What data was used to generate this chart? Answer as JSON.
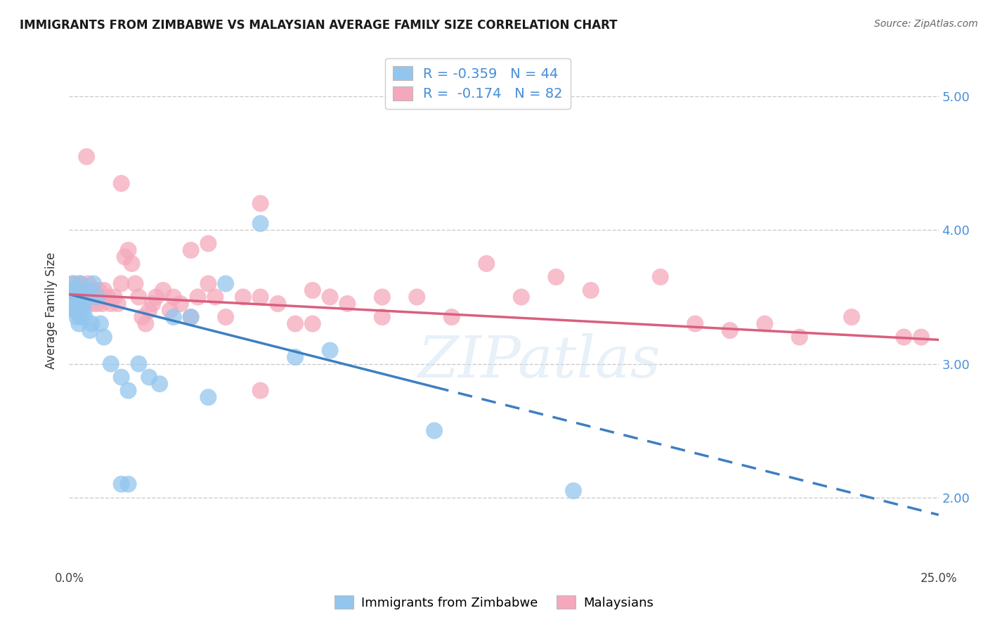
{
  "title": "IMMIGRANTS FROM ZIMBABWE VS MALAYSIAN AVERAGE FAMILY SIZE CORRELATION CHART",
  "source": "Source: ZipAtlas.com",
  "ylabel": "Average Family Size",
  "yticks_right": [
    2.0,
    3.0,
    4.0,
    5.0
  ],
  "xlim": [
    0.0,
    25.0
  ],
  "ylim": [
    1.5,
    5.3
  ],
  "blue_color": "#93C6EE",
  "pink_color": "#F5A8BC",
  "blue_line_color": "#3D7FC1",
  "pink_line_color": "#D95F7F",
  "watermark": "ZIPatlas",
  "blue_R": -0.359,
  "blue_N": 44,
  "pink_R": -0.174,
  "pink_N": 82,
  "blue_trend_x0": 0.0,
  "blue_trend_y0": 3.52,
  "blue_trend_x1": 25.0,
  "blue_trend_y1": 1.87,
  "blue_solid_end": 10.5,
  "pink_trend_x0": 0.0,
  "pink_trend_y0": 3.52,
  "pink_trend_x1": 25.0,
  "pink_trend_y1": 3.18,
  "blue_pts_x": [
    0.05,
    0.08,
    0.1,
    0.12,
    0.13,
    0.15,
    0.17,
    0.18,
    0.2,
    0.22,
    0.25,
    0.28,
    0.3,
    0.32,
    0.35,
    0.38,
    0.4,
    0.42,
    0.45,
    0.5,
    0.55,
    0.6,
    0.65,
    0.7,
    0.8,
    0.9,
    1.0,
    1.2,
    1.5,
    1.7,
    2.0,
    2.3,
    2.6,
    3.0,
    3.5,
    4.0,
    4.5,
    5.5,
    6.5,
    7.5,
    10.5,
    1.5,
    1.7,
    14.5
  ],
  "blue_pts_y": [
    3.55,
    3.5,
    3.6,
    3.45,
    3.4,
    3.55,
    3.5,
    3.45,
    3.4,
    3.35,
    3.45,
    3.3,
    3.5,
    3.6,
    3.35,
    3.5,
    3.4,
    3.45,
    3.35,
    3.5,
    3.55,
    3.25,
    3.3,
    3.6,
    3.5,
    3.3,
    3.2,
    3.0,
    2.9,
    2.8,
    3.0,
    2.9,
    2.85,
    3.35,
    3.35,
    2.75,
    3.6,
    4.05,
    3.05,
    3.1,
    2.5,
    2.1,
    2.1,
    2.05
  ],
  "pink_pts_x": [
    0.05,
    0.08,
    0.1,
    0.13,
    0.15,
    0.18,
    0.2,
    0.22,
    0.25,
    0.28,
    0.3,
    0.32,
    0.35,
    0.38,
    0.4,
    0.42,
    0.45,
    0.5,
    0.55,
    0.6,
    0.65,
    0.7,
    0.75,
    0.8,
    0.85,
    0.9,
    0.95,
    1.0,
    1.1,
    1.2,
    1.3,
    1.4,
    1.5,
    1.6,
    1.7,
    1.8,
    1.9,
    2.0,
    2.1,
    2.2,
    2.3,
    2.4,
    2.5,
    2.7,
    2.9,
    3.0,
    3.2,
    3.5,
    3.7,
    4.0,
    4.2,
    4.5,
    5.0,
    5.5,
    5.5,
    6.0,
    6.5,
    7.0,
    7.5,
    8.0,
    9.0,
    10.0,
    11.0,
    13.0,
    14.0,
    15.0,
    17.0,
    19.0,
    21.0,
    22.5,
    24.0,
    0.5,
    1.5,
    5.5,
    3.5,
    4.0,
    7.0,
    9.0,
    12.0,
    18.0,
    20.0,
    24.5
  ],
  "pink_pts_y": [
    3.5,
    3.55,
    3.45,
    3.6,
    3.5,
    3.55,
    3.45,
    3.4,
    3.5,
    3.55,
    3.6,
    3.5,
    3.45,
    3.55,
    3.5,
    3.45,
    3.5,
    3.55,
    3.6,
    3.5,
    3.45,
    3.55,
    3.5,
    3.45,
    3.55,
    3.5,
    3.45,
    3.55,
    3.5,
    3.45,
    3.5,
    3.45,
    3.6,
    3.8,
    3.85,
    3.75,
    3.6,
    3.5,
    3.35,
    3.3,
    3.4,
    3.45,
    3.5,
    3.55,
    3.4,
    3.5,
    3.45,
    3.35,
    3.5,
    3.6,
    3.5,
    3.35,
    3.5,
    2.8,
    3.5,
    3.45,
    3.3,
    3.55,
    3.5,
    3.45,
    3.5,
    3.5,
    3.35,
    3.5,
    3.65,
    3.55,
    3.65,
    3.25,
    3.2,
    3.35,
    3.2,
    4.55,
    4.35,
    4.2,
    3.85,
    3.9,
    3.3,
    3.35,
    3.75,
    3.3,
    3.3,
    3.2
  ]
}
